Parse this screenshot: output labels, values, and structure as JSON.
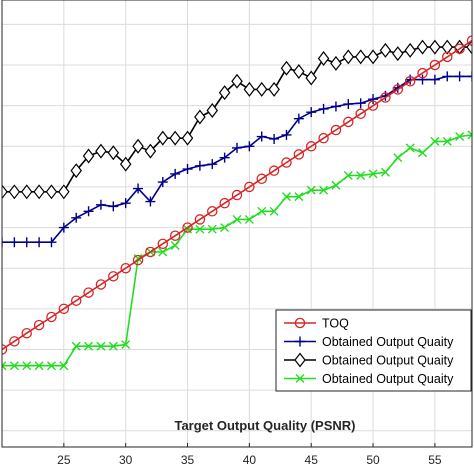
{
  "chart_data": {
    "type": "line",
    "title": "",
    "xlabel": "Target Output Quality (PSNR)",
    "ylabel": "",
    "xlim": [
      20,
      58
    ],
    "ylim": [
      8,
      63
    ],
    "xticks": [
      25,
      30,
      35,
      40,
      45,
      50,
      55
    ],
    "grid": true,
    "legend_position": "bottom-right",
    "x": [
      20,
      21,
      22,
      23,
      24,
      25,
      26,
      27,
      28,
      29,
      30,
      31,
      32,
      33,
      34,
      35,
      36,
      37,
      38,
      39,
      40,
      41,
      42,
      43,
      44,
      45,
      46,
      47,
      48,
      49,
      50,
      51,
      52,
      53,
      54,
      55,
      56,
      57,
      58
    ],
    "series": [
      {
        "name": "TOQ",
        "color": "#d62728",
        "marker": "circle",
        "values": [
          20,
          21,
          22,
          23,
          24,
          25,
          26,
          27,
          28,
          29,
          30,
          31,
          32,
          33,
          34,
          35,
          36,
          37,
          38,
          39,
          40,
          41,
          42,
          43,
          44,
          45,
          46,
          47,
          48,
          49,
          50,
          51,
          52,
          53,
          54,
          55,
          56,
          57,
          58
        ]
      },
      {
        "name": "Obtained Output Quaity",
        "color": "#00008b",
        "marker": "plus",
        "values": [
          33.2,
          33.2,
          33.2,
          33.2,
          33.2,
          35.0,
          36.2,
          37.0,
          37.8,
          37.6,
          38.0,
          39.8,
          38.2,
          40.6,
          41.6,
          42.2,
          42.6,
          42.8,
          43.6,
          44.8,
          45.0,
          46.2,
          45.9,
          46.4,
          48.4,
          49.2,
          49.6,
          49.9,
          50.2,
          50.3,
          50.8,
          51.2,
          52.2,
          53.2,
          53.2,
          53.2,
          53.6,
          53.6,
          53.6
        ]
      },
      {
        "name": "Obtained Output Quaity",
        "color": "#000000",
        "marker": "diamond",
        "values": [
          39.4,
          39.4,
          39.4,
          39.4,
          39.4,
          39.4,
          42.0,
          43.8,
          44.4,
          44.2,
          42.8,
          45.0,
          44.4,
          46.0,
          46.0,
          46.0,
          48.6,
          49.4,
          51.6,
          53.0,
          52.0,
          52.0,
          52.0,
          54.6,
          54.2,
          53.4,
          55.8,
          55.2,
          56.0,
          56.0,
          56.0,
          56.8,
          56.4,
          56.8,
          57.2,
          57.2,
          57.2,
          57.2,
          57.2
        ]
      },
      {
        "name": "Obtained Output Quaity",
        "color": "#22dd22",
        "marker": "x",
        "values": [
          18.0,
          18.0,
          18.0,
          18.0,
          18.0,
          18.0,
          20.4,
          20.4,
          20.4,
          20.4,
          20.6,
          31.2,
          32.0,
          32.0,
          32.8,
          34.8,
          34.8,
          34.8,
          35.0,
          36.0,
          36.0,
          37.0,
          37.0,
          38.8,
          38.8,
          39.6,
          39.6,
          40.2,
          41.4,
          41.4,
          41.6,
          41.8,
          43.6,
          44.8,
          44.2,
          45.6,
          45.6,
          46.2,
          46.4
        ]
      }
    ]
  }
}
